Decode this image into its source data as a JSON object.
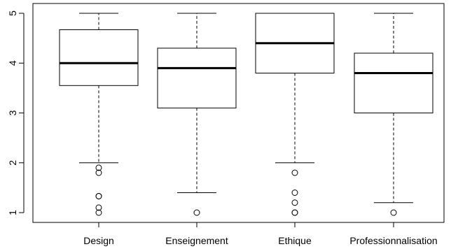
{
  "chart_data": {
    "type": "boxplot",
    "title": "",
    "xlabel": "",
    "ylabel": "",
    "ylim": [
      1,
      5
    ],
    "y_ticks": [
      1,
      2,
      3,
      4,
      5
    ],
    "grid": false,
    "legend": "none",
    "colors": {
      "stroke": "#000000",
      "fill": "#ffffff",
      "background": "#ffffff"
    },
    "categories": [
      "Design",
      "Enseignement",
      "Ethique",
      "Professionnalisation"
    ],
    "boxes": [
      {
        "category": "Design",
        "whisker_low": 2.0,
        "q1": 3.55,
        "median": 4.0,
        "q3": 4.67,
        "whisker_high": 5.0,
        "outliers": [
          1.9,
          1.8,
          1.33,
          1.33,
          1.1,
          1.0
        ]
      },
      {
        "category": "Enseignement",
        "whisker_low": 1.4,
        "q1": 3.1,
        "median": 3.9,
        "q3": 4.3,
        "whisker_high": 5.0,
        "outliers": [
          1.0
        ]
      },
      {
        "category": "Ethique",
        "whisker_low": 2.0,
        "q1": 3.8,
        "median": 4.4,
        "q3": 5.0,
        "whisker_high": 5.0,
        "outliers": [
          1.8,
          1.4,
          1.2,
          1.0,
          1.0
        ]
      },
      {
        "category": "Professionnalisation",
        "whisker_low": 1.2,
        "q1": 3.0,
        "median": 3.8,
        "q3": 4.2,
        "whisker_high": 5.0,
        "outliers": [
          1.0
        ]
      }
    ]
  }
}
